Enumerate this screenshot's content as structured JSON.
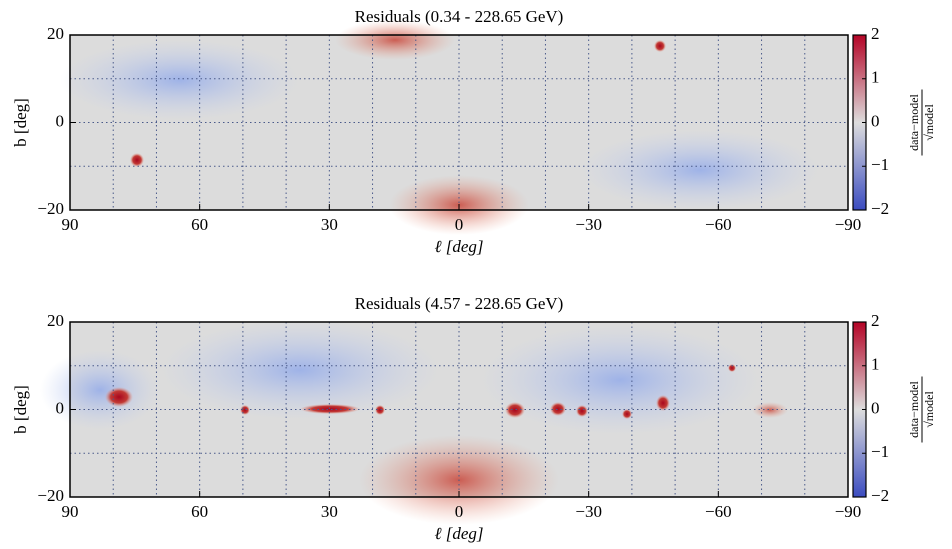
{
  "chart_data": [
    {
      "type": "heatmap",
      "title": "Residuals (0.34 - 228.65 GeV)",
      "x_label": "ℓ [deg]",
      "y_label": "b [deg]",
      "xlim": [
        90,
        -90
      ],
      "ylim": [
        -20,
        20
      ],
      "xticks": [
        90,
        60,
        30,
        0,
        {
          "value": -30,
          "label": "−30"
        },
        {
          "value": -60,
          "label": "−60"
        },
        {
          "value": -90,
          "label": "−90"
        }
      ],
      "yticks": [
        {
          "value": -20,
          "label": "−20"
        },
        0,
        20
      ],
      "xgrid": [
        80,
        70,
        60,
        50,
        40,
        30,
        20,
        10,
        0,
        -10,
        -20,
        -30,
        -40,
        -50,
        -60,
        -70,
        -80
      ],
      "ygrid": [
        -10,
        0,
        10
      ],
      "colormap": "coolwarm",
      "colormap_colors": [
        "#3b4cc0",
        "#dddddd",
        "#b40426"
      ],
      "clim": [
        -2,
        2
      ],
      "cticks": [
        {
          "value": -2,
          "label": "−2"
        },
        {
          "value": -1,
          "label": "−1"
        },
        0,
        1,
        2
      ],
      "colorbar_label": {
        "numerator": "data−model",
        "denominator": "√model"
      }
    },
    {
      "type": "heatmap",
      "title": "Residuals (4.57 - 228.65 GeV)",
      "x_label": "ℓ [deg]",
      "y_label": "b [deg]",
      "xlim": [
        90,
        -90
      ],
      "ylim": [
        -20,
        20
      ],
      "xticks": [
        90,
        60,
        30,
        0,
        {
          "value": -30,
          "label": "−30"
        },
        {
          "value": -60,
          "label": "−60"
        },
        {
          "value": -90,
          "label": "−90"
        }
      ],
      "yticks": [
        {
          "value": -20,
          "label": "−20"
        },
        0,
        20
      ],
      "xgrid": [
        80,
        70,
        60,
        50,
        40,
        30,
        20,
        10,
        0,
        -10,
        -20,
        -30,
        -40,
        -50,
        -60,
        -70,
        -80
      ],
      "ygrid": [
        -10,
        0,
        10
      ],
      "colormap": "coolwarm",
      "colormap_colors": [
        "#3b4cc0",
        "#dddddd",
        "#b40426"
      ],
      "clim": [
        -2,
        2
      ],
      "cticks": [
        {
          "value": -2,
          "label": "−2"
        },
        {
          "value": -1,
          "label": "−1"
        },
        0,
        1,
        2
      ],
      "colorbar_label": {
        "numerator": "data−model",
        "denominator": "√model"
      }
    }
  ]
}
